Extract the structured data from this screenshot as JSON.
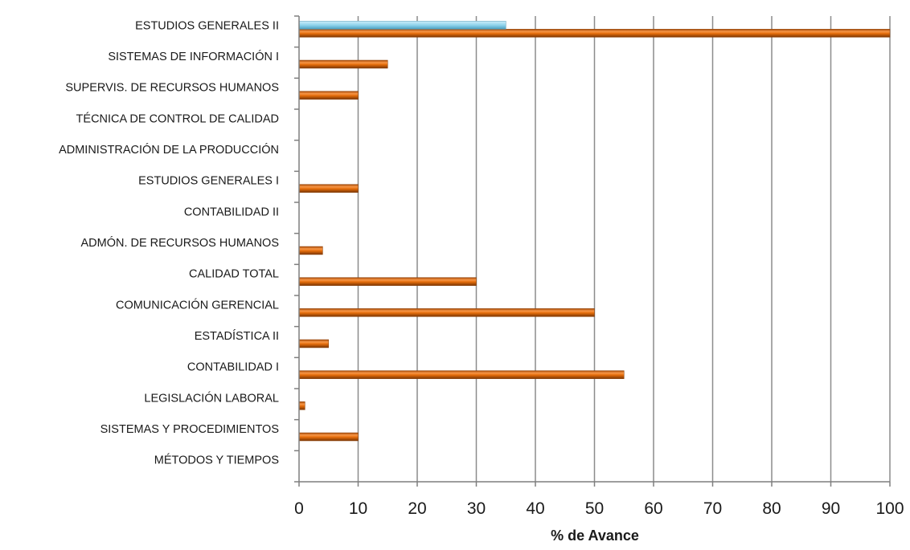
{
  "chart_data": {
    "type": "bar",
    "orientation": "horizontal",
    "categories": [
      "ESTUDIOS GENERALES II",
      "SISTEMAS DE INFORMACIÓN I",
      "SUPERVIS. DE  RECURSOS HUMANOS",
      "TÉCNICA DE CONTROL DE CALIDAD",
      "ADMINISTRACIÓN DE LA PRODUCCIÓN",
      "ESTUDIOS GENERALES I",
      "CONTABILIDAD II",
      "ADMÓN. DE RECURSOS HUMANOS",
      "CALIDAD TOTAL",
      "COMUNICACIÓN GERENCIAL",
      "ESTADÍSTICA II",
      "CONTABILIDAD I",
      "LEGISLACIÓN LABORAL",
      "SISTEMAS Y PROCEDIMIENTOS",
      "MÉTODOS Y TIEMPOS"
    ],
    "series": [
      {
        "color": "#e46c0a",
        "values": [
          100,
          15,
          10,
          0,
          0,
          10,
          0,
          4,
          30,
          50,
          5,
          55,
          1,
          10,
          0
        ]
      },
      {
        "color": "#8fd3ec",
        "values": [
          35,
          0,
          0,
          0,
          0,
          0,
          0,
          0,
          0,
          0,
          0,
          0,
          0,
          0,
          0
        ]
      }
    ],
    "xlim": [
      0,
      100
    ],
    "xticks": [
      0,
      10,
      20,
      30,
      40,
      50,
      60,
      70,
      80,
      90,
      100
    ],
    "xlabel": "% de Avance",
    "ylabel": "",
    "title": "",
    "grid": true,
    "legend": "none"
  }
}
